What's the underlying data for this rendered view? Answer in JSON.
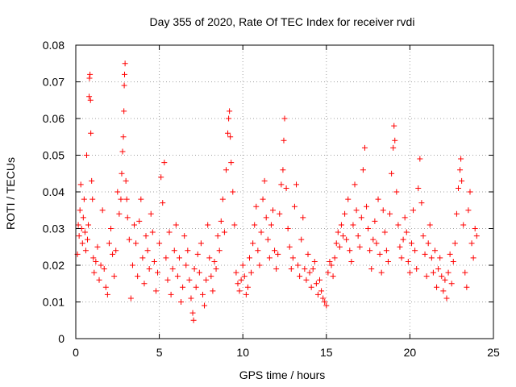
{
  "chart_data": {
    "type": "scatter",
    "title": "Day 355 of 2020, Rate Of TEC Index for receiver rvdi",
    "xlabel": "GPS time / hours",
    "ylabel": "ROTI / TECUs",
    "xlim": [
      0,
      25
    ],
    "ylim": [
      0,
      0.08
    ],
    "xticks": [
      0,
      5,
      10,
      15,
      20,
      25
    ],
    "xtick_labels": [
      "0",
      "5",
      "10",
      "15",
      "20",
      "25"
    ],
    "yticks": [
      0,
      0.01,
      0.02,
      0.03,
      0.04,
      0.05,
      0.06,
      0.07,
      0.08
    ],
    "ytick_labels": [
      "0",
      "0.01",
      "0.02",
      "0.03",
      "0.04",
      "0.05",
      "0.06",
      "0.07",
      "0.08"
    ],
    "grid": true,
    "marker": "+",
    "series": [
      {
        "color": "#ff0000",
        "points": [
          [
            0.1,
            0.023
          ],
          [
            0.15,
            0.031
          ],
          [
            0.2,
            0.028
          ],
          [
            0.25,
            0.035
          ],
          [
            0.3,
            0.042
          ],
          [
            0.35,
            0.03
          ],
          [
            0.4,
            0.026
          ],
          [
            0.45,
            0.033
          ],
          [
            0.5,
            0.038
          ],
          [
            0.55,
            0.029
          ],
          [
            0.6,
            0.024
          ],
          [
            0.65,
            0.05
          ],
          [
            0.7,
            0.027
          ],
          [
            0.75,
            0.031
          ],
          [
            0.8,
            0.066
          ],
          [
            0.82,
            0.071
          ],
          [
            0.85,
            0.072
          ],
          [
            0.88,
            0.065
          ],
          [
            0.9,
            0.056
          ],
          [
            0.95,
            0.043
          ],
          [
            1.0,
            0.038
          ],
          [
            1.05,
            0.022
          ],
          [
            1.1,
            0.018
          ],
          [
            1.2,
            0.021
          ],
          [
            1.3,
            0.025
          ],
          [
            1.4,
            0.016
          ],
          [
            1.5,
            0.02
          ],
          [
            1.6,
            0.035
          ],
          [
            1.7,
            0.019
          ],
          [
            1.8,
            0.014
          ],
          [
            1.9,
            0.012
          ],
          [
            2.0,
            0.026
          ],
          [
            2.1,
            0.03
          ],
          [
            2.2,
            0.023
          ],
          [
            2.3,
            0.017
          ],
          [
            2.4,
            0.024
          ],
          [
            2.5,
            0.04
          ],
          [
            2.6,
            0.034
          ],
          [
            2.7,
            0.038
          ],
          [
            2.75,
            0.045
          ],
          [
            2.8,
            0.051
          ],
          [
            2.85,
            0.055
          ],
          [
            2.88,
            0.062
          ],
          [
            2.9,
            0.069
          ],
          [
            2.92,
            0.072
          ],
          [
            2.95,
            0.075
          ],
          [
            3.0,
            0.043
          ],
          [
            3.05,
            0.038
          ],
          [
            3.1,
            0.033
          ],
          [
            3.2,
            0.027
          ],
          [
            3.3,
            0.011
          ],
          [
            3.4,
            0.02
          ],
          [
            3.5,
            0.031
          ],
          [
            3.6,
            0.026
          ],
          [
            3.7,
            0.017
          ],
          [
            3.8,
            0.032
          ],
          [
            3.9,
            0.038
          ],
          [
            4.0,
            0.022
          ],
          [
            4.1,
            0.015
          ],
          [
            4.2,
            0.028
          ],
          [
            4.3,
            0.024
          ],
          [
            4.4,
            0.019
          ],
          [
            4.5,
            0.034
          ],
          [
            4.6,
            0.029
          ],
          [
            4.7,
            0.021
          ],
          [
            4.8,
            0.013
          ],
          [
            4.9,
            0.018
          ],
          [
            5.0,
            0.026
          ],
          [
            5.1,
            0.044
          ],
          [
            5.2,
            0.037
          ],
          [
            5.3,
            0.048
          ],
          [
            5.4,
            0.022
          ],
          [
            5.5,
            0.016
          ],
          [
            5.6,
            0.029
          ],
          [
            5.7,
            0.012
          ],
          [
            5.8,
            0.019
          ],
          [
            5.9,
            0.024
          ],
          [
            6.0,
            0.031
          ],
          [
            6.1,
            0.017
          ],
          [
            6.2,
            0.022
          ],
          [
            6.3,
            0.01
          ],
          [
            6.4,
            0.014
          ],
          [
            6.5,
            0.028
          ],
          [
            6.6,
            0.02
          ],
          [
            6.7,
            0.024
          ],
          [
            6.8,
            0.016
          ],
          [
            6.9,
            0.011
          ],
          [
            7.0,
            0.007
          ],
          [
            7.05,
            0.005
          ],
          [
            7.1,
            0.019
          ],
          [
            7.2,
            0.014
          ],
          [
            7.3,
            0.023
          ],
          [
            7.4,
            0.018
          ],
          [
            7.5,
            0.026
          ],
          [
            7.6,
            0.012
          ],
          [
            7.7,
            0.009
          ],
          [
            7.8,
            0.016
          ],
          [
            7.9,
            0.031
          ],
          [
            8.0,
            0.022
          ],
          [
            8.1,
            0.017
          ],
          [
            8.2,
            0.013
          ],
          [
            8.3,
            0.021
          ],
          [
            8.4,
            0.019
          ],
          [
            8.5,
            0.028
          ],
          [
            8.6,
            0.024
          ],
          [
            8.7,
            0.032
          ],
          [
            8.8,
            0.038
          ],
          [
            8.9,
            0.029
          ],
          [
            9.0,
            0.046
          ],
          [
            9.1,
            0.056
          ],
          [
            9.15,
            0.06
          ],
          [
            9.2,
            0.062
          ],
          [
            9.25,
            0.055
          ],
          [
            9.3,
            0.048
          ],
          [
            9.4,
            0.04
          ],
          [
            9.5,
            0.031
          ],
          [
            9.6,
            0.018
          ],
          [
            9.7,
            0.015
          ],
          [
            9.8,
            0.013
          ],
          [
            9.9,
            0.016
          ],
          [
            10.0,
            0.02
          ],
          [
            10.1,
            0.017
          ],
          [
            10.2,
            0.012
          ],
          [
            10.3,
            0.014
          ],
          [
            10.4,
            0.022
          ],
          [
            10.5,
            0.018
          ],
          [
            10.6,
            0.026
          ],
          [
            10.7,
            0.031
          ],
          [
            10.8,
            0.036
          ],
          [
            10.9,
            0.024
          ],
          [
            11.0,
            0.02
          ],
          [
            11.1,
            0.029
          ],
          [
            11.2,
            0.038
          ],
          [
            11.3,
            0.043
          ],
          [
            11.4,
            0.033
          ],
          [
            11.5,
            0.027
          ],
          [
            11.6,
            0.022
          ],
          [
            11.7,
            0.031
          ],
          [
            11.8,
            0.035
          ],
          [
            11.9,
            0.024
          ],
          [
            12.0,
            0.019
          ],
          [
            12.1,
            0.023
          ],
          [
            12.2,
            0.034
          ],
          [
            12.3,
            0.042
          ],
          [
            12.4,
            0.046
          ],
          [
            12.45,
            0.054
          ],
          [
            12.5,
            0.06
          ],
          [
            12.6,
            0.041
          ],
          [
            12.7,
            0.03
          ],
          [
            12.8,
            0.025
          ],
          [
            12.9,
            0.019
          ],
          [
            13.0,
            0.022
          ],
          [
            13.1,
            0.036
          ],
          [
            13.2,
            0.042
          ],
          [
            13.3,
            0.02
          ],
          [
            13.4,
            0.017
          ],
          [
            13.5,
            0.027
          ],
          [
            13.6,
            0.033
          ],
          [
            13.7,
            0.019
          ],
          [
            13.8,
            0.016
          ],
          [
            13.9,
            0.023
          ],
          [
            14.0,
            0.018
          ],
          [
            14.1,
            0.014
          ],
          [
            14.2,
            0.019
          ],
          [
            14.3,
            0.021
          ],
          [
            14.4,
            0.015
          ],
          [
            14.5,
            0.012
          ],
          [
            14.6,
            0.016
          ],
          [
            14.7,
            0.013
          ],
          [
            14.8,
            0.011
          ],
          [
            14.9,
            0.01
          ],
          [
            15.0,
            0.009
          ],
          [
            15.1,
            0.018
          ],
          [
            15.2,
            0.021
          ],
          [
            15.3,
            0.02
          ],
          [
            15.4,
            0.017
          ],
          [
            15.5,
            0.022
          ],
          [
            15.6,
            0.026
          ],
          [
            15.7,
            0.029
          ],
          [
            15.8,
            0.025
          ],
          [
            15.9,
            0.031
          ],
          [
            16.0,
            0.028
          ],
          [
            16.1,
            0.034
          ],
          [
            16.2,
            0.027
          ],
          [
            16.3,
            0.038
          ],
          [
            16.4,
            0.024
          ],
          [
            16.5,
            0.021
          ],
          [
            16.6,
            0.031
          ],
          [
            16.7,
            0.042
          ],
          [
            16.8,
            0.035
          ],
          [
            16.9,
            0.028
          ],
          [
            17.0,
            0.025
          ],
          [
            17.1,
            0.033
          ],
          [
            17.2,
            0.046
          ],
          [
            17.3,
            0.052
          ],
          [
            17.4,
            0.036
          ],
          [
            17.5,
            0.03
          ],
          [
            17.6,
            0.024
          ],
          [
            17.7,
            0.019
          ],
          [
            17.8,
            0.027
          ],
          [
            17.9,
            0.032
          ],
          [
            18.0,
            0.026
          ],
          [
            18.1,
            0.038
          ],
          [
            18.2,
            0.023
          ],
          [
            18.3,
            0.018
          ],
          [
            18.4,
            0.035
          ],
          [
            18.5,
            0.029
          ],
          [
            18.6,
            0.024
          ],
          [
            18.7,
            0.021
          ],
          [
            18.8,
            0.034
          ],
          [
            18.9,
            0.045
          ],
          [
            19.0,
            0.052
          ],
          [
            19.05,
            0.058
          ],
          [
            19.1,
            0.054
          ],
          [
            19.2,
            0.04
          ],
          [
            19.3,
            0.031
          ],
          [
            19.4,
            0.025
          ],
          [
            19.5,
            0.022
          ],
          [
            19.6,
            0.027
          ],
          [
            19.7,
            0.033
          ],
          [
            19.8,
            0.029
          ],
          [
            19.9,
            0.021
          ],
          [
            20.0,
            0.018
          ],
          [
            20.1,
            0.026
          ],
          [
            20.2,
            0.035
          ],
          [
            20.3,
            0.024
          ],
          [
            20.4,
            0.019
          ],
          [
            20.5,
            0.041
          ],
          [
            20.6,
            0.049
          ],
          [
            20.7,
            0.037
          ],
          [
            20.8,
            0.028
          ],
          [
            20.9,
            0.023
          ],
          [
            21.0,
            0.017
          ],
          [
            21.1,
            0.026
          ],
          [
            21.2,
            0.031
          ],
          [
            21.3,
            0.022
          ],
          [
            21.4,
            0.018
          ],
          [
            21.5,
            0.024
          ],
          [
            21.6,
            0.014
          ],
          [
            21.7,
            0.019
          ],
          [
            21.8,
            0.022
          ],
          [
            21.9,
            0.017
          ],
          [
            22.0,
            0.013
          ],
          [
            22.1,
            0.016
          ],
          [
            22.2,
            0.011
          ],
          [
            22.3,
            0.018
          ],
          [
            22.4,
            0.023
          ],
          [
            22.5,
            0.015
          ],
          [
            22.6,
            0.021
          ],
          [
            22.7,
            0.026
          ],
          [
            22.8,
            0.034
          ],
          [
            22.9,
            0.041
          ],
          [
            23.0,
            0.046
          ],
          [
            23.05,
            0.049
          ],
          [
            23.1,
            0.043
          ],
          [
            23.2,
            0.031
          ],
          [
            23.3,
            0.018
          ],
          [
            23.4,
            0.014
          ],
          [
            23.5,
            0.035
          ],
          [
            23.6,
            0.04
          ],
          [
            23.7,
            0.026
          ],
          [
            23.8,
            0.022
          ],
          [
            23.9,
            0.03
          ],
          [
            24.0,
            0.028
          ]
        ]
      }
    ]
  }
}
